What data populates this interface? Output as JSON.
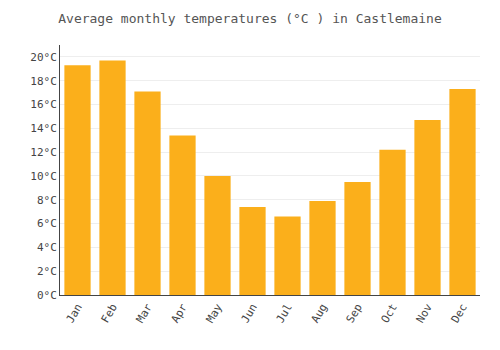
{
  "chart_data": {
    "type": "bar",
    "title": "Average monthly temperatures (°C ) in Castlemaine",
    "categories": [
      "Jan",
      "Feb",
      "Mar",
      "Apr",
      "May",
      "Jun",
      "Jul",
      "Aug",
      "Sep",
      "Oct",
      "Nov",
      "Dec"
    ],
    "values": [
      19.3,
      19.7,
      17.1,
      13.4,
      10.0,
      7.4,
      6.6,
      7.9,
      9.5,
      12.2,
      14.7,
      17.3
    ],
    "color": "#FBAF1B",
    "ylim": [
      0,
      21
    ],
    "yticks": [
      {
        "value": 0,
        "label": "0°C"
      },
      {
        "value": 2,
        "label": "2°C"
      },
      {
        "value": 4,
        "label": "4°C"
      },
      {
        "value": 6,
        "label": "6°C"
      },
      {
        "value": 8,
        "label": "8°C"
      },
      {
        "value": 10,
        "label": "10°C"
      },
      {
        "value": 12,
        "label": "12°C"
      },
      {
        "value": 14,
        "label": "14°C"
      },
      {
        "value": 16,
        "label": "16°C"
      },
      {
        "value": 18,
        "label": "18°C"
      },
      {
        "value": 20,
        "label": "20°C"
      }
    ],
    "grid": true
  }
}
